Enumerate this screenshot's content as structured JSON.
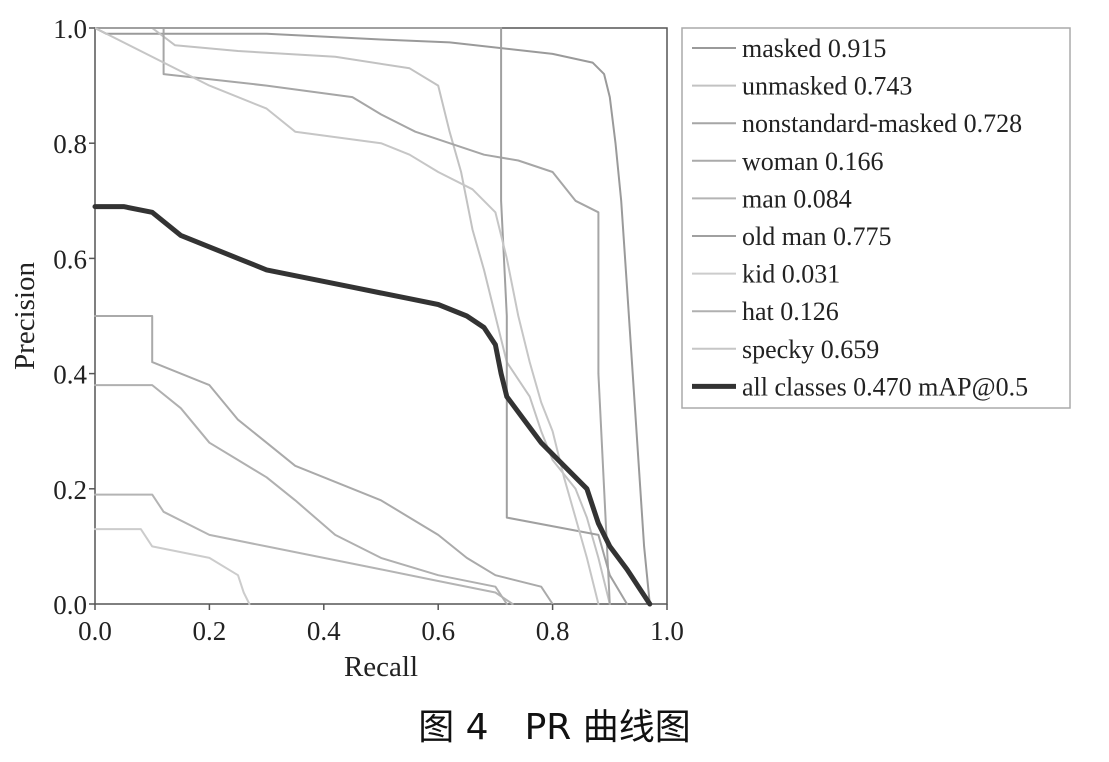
{
  "caption": "图 4　PR 曲线图",
  "chart_data": {
    "type": "line",
    "title": "",
    "xlabel": "Recall",
    "ylabel": "Precision",
    "xlim": [
      0.0,
      1.0
    ],
    "ylim": [
      0.0,
      1.0
    ],
    "xticks": [
      "0.0",
      "0.2",
      "0.4",
      "0.6",
      "0.8",
      "1.0"
    ],
    "yticks": [
      "0.0",
      "0.2",
      "0.4",
      "0.6",
      "0.8",
      "1.0"
    ],
    "grid": false,
    "legend_position": "outside-right",
    "series": [
      {
        "name": "masked 0.915",
        "color": "#9a9a9a",
        "width": 2,
        "points": [
          [
            0,
            1
          ],
          [
            0.02,
            0.99
          ],
          [
            0.3,
            0.99
          ],
          [
            0.5,
            0.98
          ],
          [
            0.62,
            0.975
          ],
          [
            0.8,
            0.955
          ],
          [
            0.87,
            0.94
          ],
          [
            0.89,
            0.92
          ],
          [
            0.9,
            0.88
          ],
          [
            0.91,
            0.8
          ],
          [
            0.92,
            0.7
          ],
          [
            0.93,
            0.55
          ],
          [
            0.94,
            0.4
          ],
          [
            0.95,
            0.25
          ],
          [
            0.96,
            0.1
          ],
          [
            0.97,
            0
          ]
        ]
      },
      {
        "name": "unmasked 0.743",
        "color": "#c2c2c2",
        "width": 2,
        "points": [
          [
            0,
            1
          ],
          [
            0.1,
            1
          ],
          [
            0.14,
            0.97
          ],
          [
            0.25,
            0.96
          ],
          [
            0.42,
            0.95
          ],
          [
            0.55,
            0.93
          ],
          [
            0.6,
            0.9
          ],
          [
            0.62,
            0.82
          ],
          [
            0.64,
            0.75
          ],
          [
            0.66,
            0.65
          ],
          [
            0.68,
            0.58
          ],
          [
            0.7,
            0.5
          ],
          [
            0.72,
            0.42
          ],
          [
            0.76,
            0.36
          ],
          [
            0.78,
            0.3
          ],
          [
            0.8,
            0.25
          ],
          [
            0.84,
            0.2
          ],
          [
            0.86,
            0.15
          ],
          [
            0.88,
            0.08
          ],
          [
            0.9,
            0
          ]
        ]
      },
      {
        "name": "nonstandard-masked 0.728",
        "color": "#a6a6a6",
        "width": 2,
        "points": [
          [
            0,
            1
          ],
          [
            0.12,
            1
          ],
          [
            0.12,
            0.92
          ],
          [
            0.3,
            0.9
          ],
          [
            0.45,
            0.88
          ],
          [
            0.5,
            0.85
          ],
          [
            0.56,
            0.82
          ],
          [
            0.62,
            0.8
          ],
          [
            0.68,
            0.78
          ],
          [
            0.74,
            0.77
          ],
          [
            0.8,
            0.75
          ],
          [
            0.84,
            0.7
          ],
          [
            0.88,
            0.68
          ],
          [
            0.88,
            0.4
          ],
          [
            0.89,
            0.2
          ],
          [
            0.9,
            0
          ]
        ]
      },
      {
        "name": "woman 0.166",
        "color": "#aaaaaa",
        "width": 2,
        "points": [
          [
            0,
            0.5
          ],
          [
            0.1,
            0.5
          ],
          [
            0.1,
            0.42
          ],
          [
            0.2,
            0.38
          ],
          [
            0.25,
            0.32
          ],
          [
            0.3,
            0.28
          ],
          [
            0.35,
            0.24
          ],
          [
            0.4,
            0.22
          ],
          [
            0.45,
            0.2
          ],
          [
            0.5,
            0.18
          ],
          [
            0.55,
            0.15
          ],
          [
            0.6,
            0.12
          ],
          [
            0.65,
            0.08
          ],
          [
            0.7,
            0.05
          ],
          [
            0.78,
            0.03
          ],
          [
            0.8,
            0
          ]
        ]
      },
      {
        "name": "man 0.084",
        "color": "#b4b4b4",
        "width": 2,
        "points": [
          [
            0,
            0.19
          ],
          [
            0.1,
            0.19
          ],
          [
            0.12,
            0.16
          ],
          [
            0.2,
            0.12
          ],
          [
            0.3,
            0.1
          ],
          [
            0.4,
            0.08
          ],
          [
            0.5,
            0.06
          ],
          [
            0.6,
            0.04
          ],
          [
            0.7,
            0.02
          ],
          [
            0.73,
            0
          ]
        ]
      },
      {
        "name": "old man 0.775",
        "color": "#a0a0a0",
        "width": 2,
        "points": [
          [
            0,
            1
          ],
          [
            0.71,
            1
          ],
          [
            0.71,
            0.7
          ],
          [
            0.72,
            0.5
          ],
          [
            0.72,
            0.15
          ],
          [
            0.88,
            0.12
          ],
          [
            0.9,
            0.05
          ],
          [
            0.93,
            0
          ]
        ]
      },
      {
        "name": "kid 0.031",
        "color": "#cccccc",
        "width": 2,
        "points": [
          [
            0,
            0.13
          ],
          [
            0.08,
            0.13
          ],
          [
            0.1,
            0.1
          ],
          [
            0.2,
            0.08
          ],
          [
            0.25,
            0.05
          ],
          [
            0.26,
            0.02
          ],
          [
            0.27,
            0
          ]
        ]
      },
      {
        "name": "hat 0.126",
        "color": "#b0b0b0",
        "width": 2,
        "points": [
          [
            0,
            0.38
          ],
          [
            0.1,
            0.38
          ],
          [
            0.15,
            0.34
          ],
          [
            0.2,
            0.28
          ],
          [
            0.25,
            0.25
          ],
          [
            0.3,
            0.22
          ],
          [
            0.35,
            0.18
          ],
          [
            0.42,
            0.12
          ],
          [
            0.5,
            0.08
          ],
          [
            0.6,
            0.05
          ],
          [
            0.7,
            0.03
          ],
          [
            0.72,
            0
          ]
        ]
      },
      {
        "name": "specky 0.659",
        "color": "#c6c6c6",
        "width": 2,
        "points": [
          [
            0,
            1
          ],
          [
            0.2,
            0.9
          ],
          [
            0.3,
            0.86
          ],
          [
            0.35,
            0.82
          ],
          [
            0.5,
            0.8
          ],
          [
            0.55,
            0.78
          ],
          [
            0.6,
            0.75
          ],
          [
            0.66,
            0.72
          ],
          [
            0.7,
            0.68
          ],
          [
            0.72,
            0.6
          ],
          [
            0.74,
            0.5
          ],
          [
            0.76,
            0.42
          ],
          [
            0.78,
            0.35
          ],
          [
            0.8,
            0.3
          ],
          [
            0.82,
            0.22
          ],
          [
            0.84,
            0.15
          ],
          [
            0.86,
            0.08
          ],
          [
            0.88,
            0
          ]
        ]
      },
      {
        "name": "all classes 0.470 mAP@0.5",
        "color": "#333333",
        "width": 5,
        "points": [
          [
            0,
            0.69
          ],
          [
            0.05,
            0.69
          ],
          [
            0.1,
            0.68
          ],
          [
            0.15,
            0.64
          ],
          [
            0.2,
            0.62
          ],
          [
            0.25,
            0.6
          ],
          [
            0.3,
            0.58
          ],
          [
            0.35,
            0.57
          ],
          [
            0.4,
            0.56
          ],
          [
            0.45,
            0.55
          ],
          [
            0.5,
            0.54
          ],
          [
            0.55,
            0.53
          ],
          [
            0.6,
            0.52
          ],
          [
            0.65,
            0.5
          ],
          [
            0.68,
            0.48
          ],
          [
            0.7,
            0.45
          ],
          [
            0.71,
            0.4
          ],
          [
            0.72,
            0.36
          ],
          [
            0.75,
            0.32
          ],
          [
            0.78,
            0.28
          ],
          [
            0.82,
            0.24
          ],
          [
            0.86,
            0.2
          ],
          [
            0.88,
            0.14
          ],
          [
            0.9,
            0.1
          ],
          [
            0.93,
            0.06
          ],
          [
            0.95,
            0.03
          ],
          [
            0.97,
            0
          ]
        ]
      }
    ]
  }
}
